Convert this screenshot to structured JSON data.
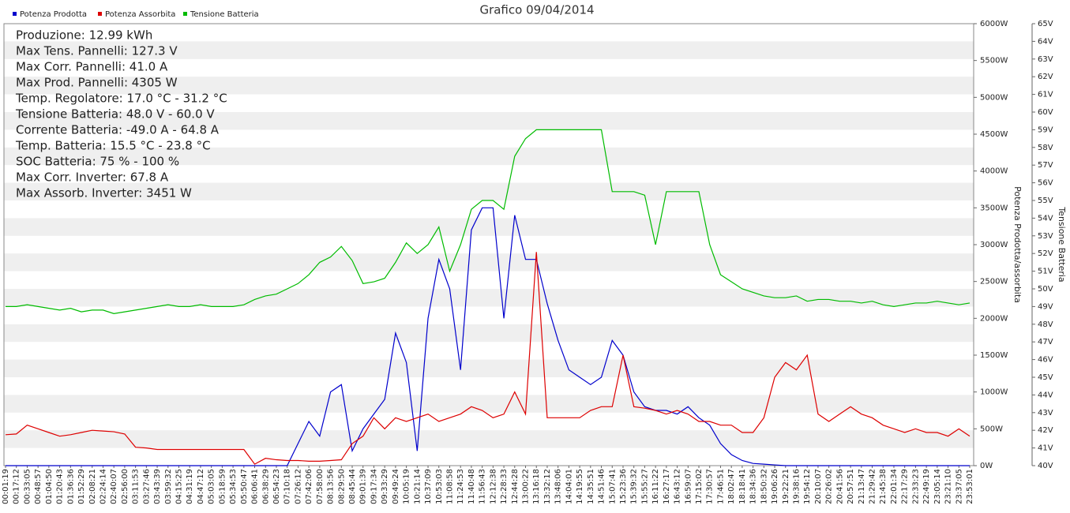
{
  "chart_data": {
    "type": "line",
    "title": "Grafico 09/04/2014",
    "info": [
      "Produzione: 12.99 kWh",
      "Max Tens. Pannelli: 127.3 V",
      "Max Corr. Pannelli: 41.0 A",
      "Max Prod. Pannelli: 4305 W",
      "Temp. Regolatore: 17.0 °C - 31.2 °C",
      "Tensione Batteria: 48.0 V - 60.0 V",
      "Corrente Batteria: -49.0 A - 64.8 A",
      "Temp. Batteria: 15.5 °C - 23.8 °C",
      "SOC Batteria: 75 % - 100 %",
      "Max Corr. Inverter: 67.8 A",
      "Max Assorb. Inverter: 3451 W"
    ],
    "ylabel": "Potenza Prodotta/assorbita",
    "y2label": "Tensione Batteria",
    "legend": "top-left",
    "categories": [
      "00:01:19",
      "00:17:12",
      "00:33:05",
      "00:48:57",
      "01:04:50",
      "01:20:43",
      "01:36:36",
      "01:52:29",
      "02:08:21",
      "02:24:14",
      "02:40:07",
      "02:56:00",
      "03:11:53",
      "03:27:46",
      "03:43:39",
      "03:59:32",
      "04:15:25",
      "04:31:19",
      "04:47:12",
      "05:03:05",
      "05:18:59",
      "05:34:53",
      "05:50:47",
      "06:06:41",
      "06:38:29",
      "06:54:23",
      "07:10:18",
      "07:26:12",
      "07:42:06",
      "07:58:00",
      "08:13:56",
      "08:29:50",
      "08:45:44",
      "09:01:39",
      "09:17:34",
      "09:33:29",
      "09:49:24",
      "10:05:19",
      "10:21:14",
      "10:37:09",
      "10:53:03",
      "11:08:58",
      "11:24:53",
      "11:40:48",
      "11:56:43",
      "12:12:38",
      "12:28:33",
      "12:44:28",
      "13:00:22",
      "13:16:18",
      "13:32:12",
      "13:48:06",
      "14:04:01",
      "14:19:55",
      "14:35:51",
      "14:51:46",
      "15:07:41",
      "15:23:36",
      "15:39:32",
      "15:55:27",
      "16:11:22",
      "16:27:17",
      "16:43:12",
      "16:59:07",
      "17:15:02",
      "17:30:57",
      "17:46:51",
      "18:02:47",
      "18:18:41",
      "18:34:36",
      "18:50:32",
      "19:06:26",
      "19:22:21",
      "19:38:16",
      "19:54:12",
      "20:10:07",
      "20:26:02",
      "20:41:56",
      "20:57:51",
      "21:13:47",
      "21:29:42",
      "21:45:38",
      "22:01:34",
      "22:17:29",
      "22:33:23",
      "22:49:19",
      "23:05:14",
      "23:21:10",
      "23:37:05",
      "23:53:01"
    ],
    "series": [
      {
        "name": "Potenza Prodotta",
        "color": "#0000cc",
        "values": [
          0,
          0,
          0,
          0,
          0,
          0,
          0,
          0,
          0,
          0,
          0,
          0,
          0,
          0,
          0,
          0,
          0,
          0,
          0,
          0,
          0,
          0,
          0,
          0,
          0,
          0,
          0,
          300,
          600,
          400,
          1000,
          1100,
          200,
          500,
          700,
          900,
          1800,
          1400,
          200,
          2000,
          2800,
          2400,
          1300,
          3200,
          3500,
          3500,
          2000,
          3400,
          2800,
          2800,
          2200,
          1700,
          1300,
          1200,
          1100,
          1200,
          1700,
          1500,
          1000,
          800,
          750,
          750,
          700,
          800,
          650,
          550,
          300,
          150,
          70,
          30,
          20,
          10,
          0,
          0,
          0,
          0,
          0,
          0,
          0,
          0,
          0,
          0,
          0,
          0,
          0,
          0,
          0,
          0,
          0,
          0
        ]
      },
      {
        "name": "Potenza Assorbita",
        "color": "#dd0000",
        "values": [
          420,
          430,
          550,
          500,
          450,
          400,
          420,
          450,
          480,
          470,
          460,
          430,
          250,
          240,
          220,
          220,
          220,
          220,
          220,
          220,
          220,
          220,
          220,
          20,
          100,
          80,
          70,
          70,
          60,
          60,
          70,
          80,
          300,
          400,
          650,
          500,
          650,
          600,
          650,
          700,
          600,
          650,
          700,
          800,
          750,
          650,
          700,
          1000,
          700,
          2900,
          650,
          650,
          650,
          650,
          750,
          800,
          800,
          1500,
          800,
          780,
          750,
          700,
          750,
          700,
          600,
          600,
          550,
          550,
          450,
          450,
          650,
          1200,
          1400,
          1300,
          1500,
          700,
          600,
          700,
          800,
          700,
          650,
          550,
          500,
          450,
          500,
          450,
          450,
          400,
          500,
          400
        ]
      },
      {
        "name": "Tensione Batteria",
        "color": "#00bb00",
        "axis": "y2",
        "values": [
          49.0,
          49.0,
          49.1,
          49.0,
          48.9,
          48.8,
          48.9,
          48.7,
          48.8,
          48.8,
          48.6,
          48.7,
          48.8,
          48.9,
          49.0,
          49.1,
          49.0,
          49.0,
          49.1,
          49.0,
          49.0,
          49.0,
          49.1,
          49.4,
          49.6,
          49.7,
          50.0,
          50.3,
          50.8,
          51.5,
          51.8,
          52.4,
          51.6,
          50.3,
          50.4,
          50.6,
          51.5,
          52.6,
          52.0,
          52.5,
          53.5,
          51.0,
          52.5,
          54.5,
          55.0,
          55.0,
          54.5,
          57.5,
          58.5,
          59.0,
          59.0,
          59.0,
          59.0,
          59.0,
          59.0,
          59.0,
          55.5,
          55.5,
          55.5,
          55.3,
          52.5,
          55.5,
          55.5,
          55.5,
          55.5,
          52.5,
          50.8,
          50.4,
          50.0,
          49.8,
          49.6,
          49.5,
          49.5,
          49.6,
          49.3,
          49.4,
          49.4,
          49.3,
          49.3,
          49.2,
          49.3,
          49.1,
          49.0,
          49.1,
          49.2,
          49.2,
          49.3,
          49.2,
          49.1,
          49.2
        ]
      }
    ],
    "ylim": [
      0,
      6000
    ],
    "yticks": [
      {
        "value": 0,
        "label": "0W"
      },
      {
        "value": 500,
        "label": "500W"
      },
      {
        "value": 1000,
        "label": "1000W"
      },
      {
        "value": 1500,
        "label": "1500W"
      },
      {
        "value": 2000,
        "label": "2000W"
      },
      {
        "value": 2500,
        "label": "2500W"
      },
      {
        "value": 3000,
        "label": "3000W"
      },
      {
        "value": 3500,
        "label": "3500W"
      },
      {
        "value": 4000,
        "label": "4000W"
      },
      {
        "value": 4500,
        "label": "4500W"
      },
      {
        "value": 5000,
        "label": "5000W"
      },
      {
        "value": 5500,
        "label": "5500W"
      },
      {
        "value": 6000,
        "label": "6000W"
      }
    ],
    "y2lim": [
      40,
      65
    ],
    "y2ticks": [
      {
        "value": 40,
        "label": "40V"
      },
      {
        "value": 41,
        "label": "41V"
      },
      {
        "value": 42,
        "label": "42V"
      },
      {
        "value": 43,
        "label": "43V"
      },
      {
        "value": 44,
        "label": "44V"
      },
      {
        "value": 45,
        "label": "45V"
      },
      {
        "value": 46,
        "label": "46V"
      },
      {
        "value": 47,
        "label": "47V"
      },
      {
        "value": 48,
        "label": "48V"
      },
      {
        "value": 49,
        "label": "49V"
      },
      {
        "value": 50,
        "label": "50V"
      },
      {
        "value": 51,
        "label": "51V"
      },
      {
        "value": 52,
        "label": "52V"
      },
      {
        "value": 53,
        "label": "53V"
      },
      {
        "value": 54,
        "label": "54V"
      },
      {
        "value": 55,
        "label": "55V"
      },
      {
        "value": 56,
        "label": "56V"
      },
      {
        "value": 57,
        "label": "57V"
      },
      {
        "value": 58,
        "label": "58V"
      },
      {
        "value": 59,
        "label": "59V"
      },
      {
        "value": 60,
        "label": "60V"
      },
      {
        "value": 61,
        "label": "61V"
      },
      {
        "value": 62,
        "label": "62V"
      },
      {
        "value": 63,
        "label": "63V"
      },
      {
        "value": 64,
        "label": "64V"
      },
      {
        "value": 65,
        "label": "65V"
      }
    ],
    "grid": true
  }
}
